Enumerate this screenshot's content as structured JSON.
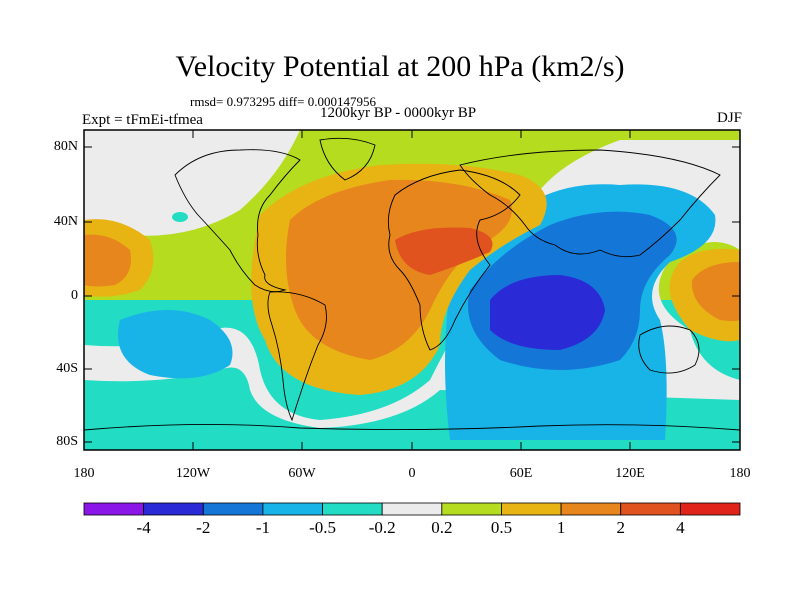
{
  "title": "Velocity Potential at 200 hPa (km2/s)",
  "stats": "rmsd= 0.973295 diff= 0.000147956",
  "experiment": "Expt = tFmEi-tfmea",
  "period": "1200kyr BP - 0000kyr BP",
  "season": "DJF",
  "y_ticks": [
    "80N",
    "40N",
    "0",
    "40S",
    "80S"
  ],
  "x_ticks": [
    "180",
    "120W",
    "60W",
    "0",
    "60E",
    "120E",
    "180"
  ],
  "colorbar": {
    "colors": [
      "#8a17e8",
      "#2a2bd6",
      "#1477d8",
      "#18b4e8",
      "#22dcc4",
      "#ececec",
      "#b5dc1e",
      "#e8b414",
      "#e6861c",
      "#e0521e",
      "#e0241a"
    ],
    "labels": [
      "-4",
      "-2",
      "-1",
      "-0.5",
      "-0.2",
      "0.2",
      "0.5",
      "1",
      "2",
      "4"
    ]
  }
}
